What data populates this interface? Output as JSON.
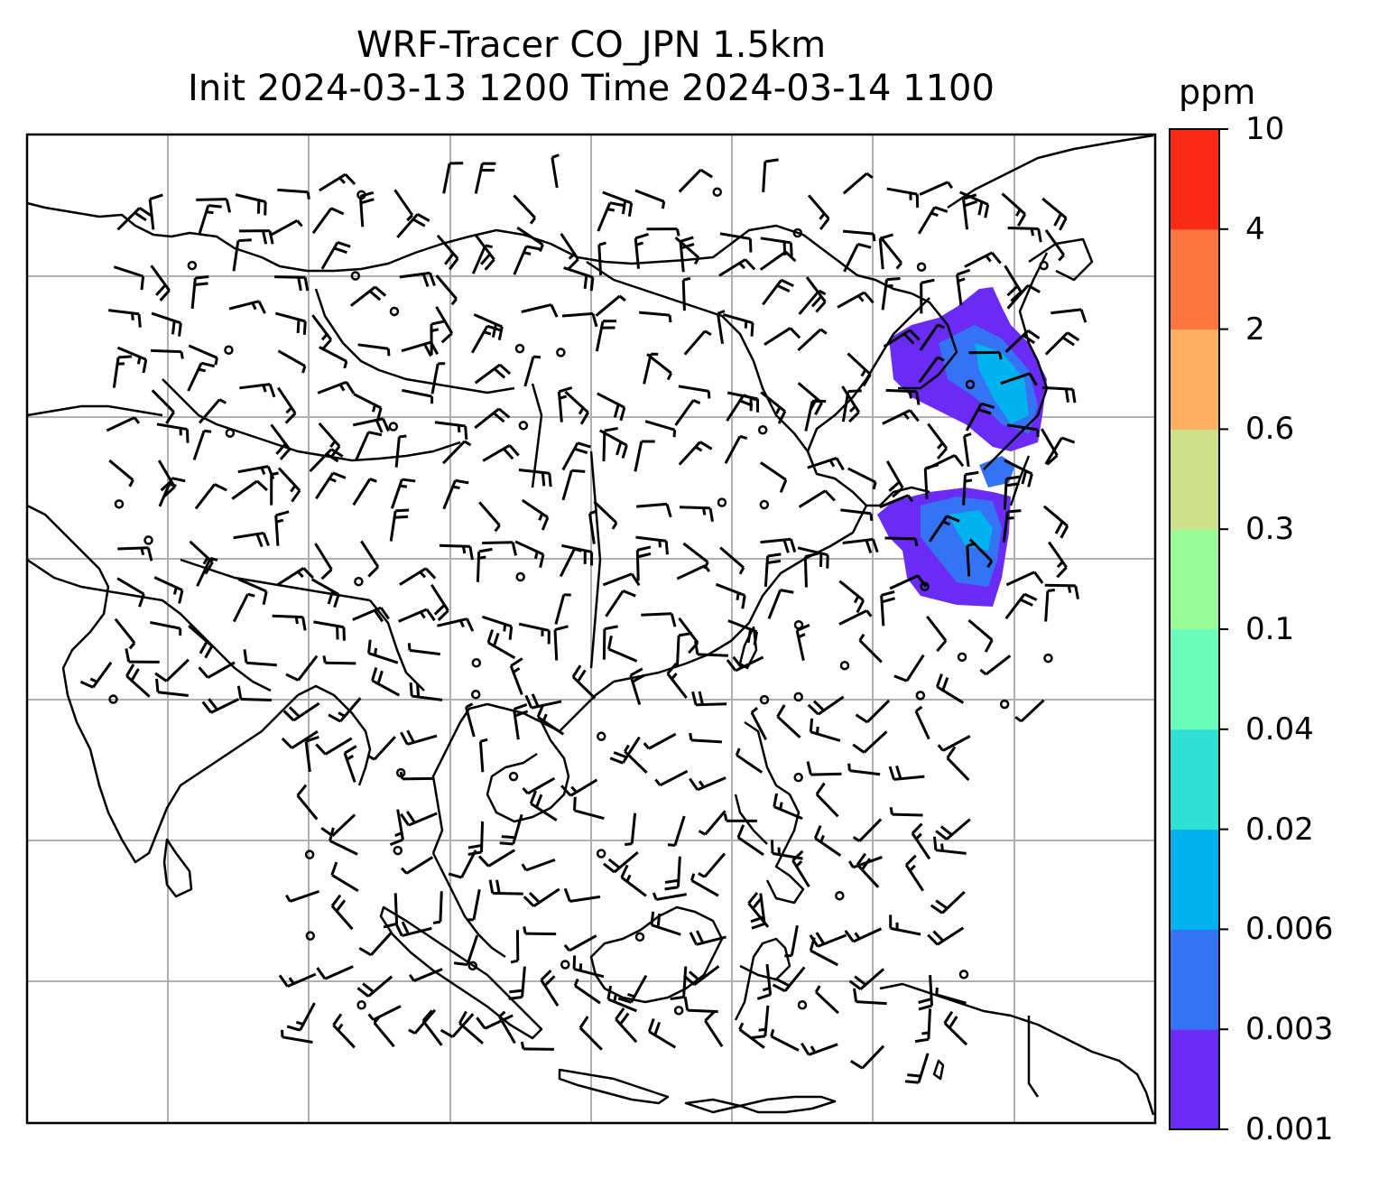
{
  "title": {
    "line1": "WRF-Tracer CO_JPN 1.5km",
    "line2": "Init 2024-03-13 1200 Time 2024-03-14 1100"
  },
  "colorbar": {
    "unit": "ppm",
    "ticks": [
      "10",
      "4",
      "2",
      "0.6",
      "0.3",
      "0.1",
      "0.04",
      "0.02",
      "0.006",
      "0.003",
      "0.001"
    ],
    "colors": [
      "#6a2cf5",
      "#3573f5",
      "#00b2ee",
      "#30e0d2",
      "#6afdbe",
      "#98fb98",
      "#cfe08a",
      "#fdb063",
      "#fd7540",
      "#fa2a16"
    ]
  },
  "map": {
    "layers": [
      "coastlines",
      "borders",
      "gridlines",
      "wind-barbs",
      "co-tracer-field"
    ],
    "gridline_color": "#b0b0b0",
    "line_color": "#000000"
  }
}
